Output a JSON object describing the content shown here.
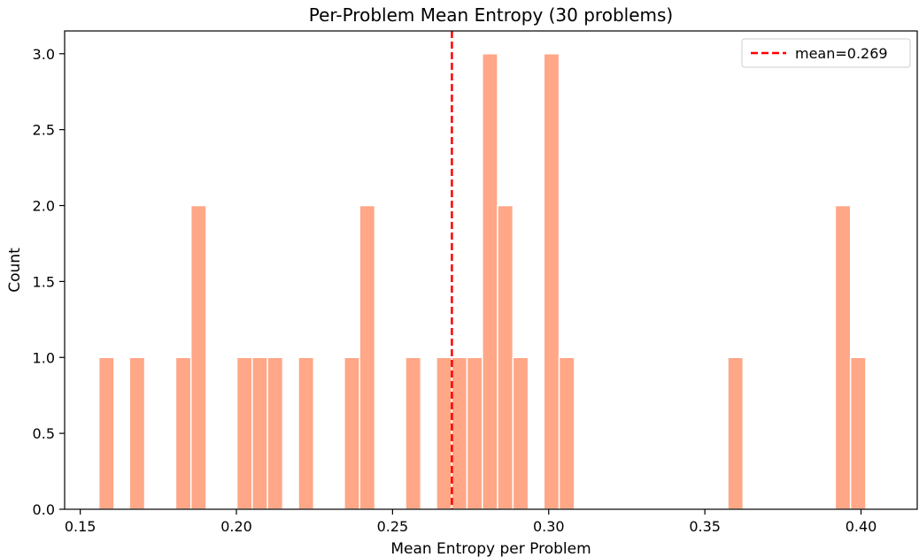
{
  "chart_data": {
    "type": "bar",
    "title": "Per-Problem Mean Entropy (30 problems)",
    "xlabel": "Mean Entropy per Problem",
    "ylabel": "Count",
    "xlim": [
      0.145,
      0.418
    ],
    "ylim": [
      0,
      3.15
    ],
    "xticks": [
      0.15,
      0.2,
      0.25,
      0.3,
      0.35,
      0.4
    ],
    "xtick_labels": [
      "0.15",
      "0.20",
      "0.25",
      "0.30",
      "0.35",
      "0.40"
    ],
    "yticks": [
      0,
      0.5,
      1,
      1.5,
      2,
      2.5,
      3
    ],
    "ytick_labels": [
      "0.0",
      "0.5",
      "1.0",
      "1.5",
      "2.0",
      "2.5",
      "3.0"
    ],
    "bin_width": 0.00491,
    "bar_color": "#FFA787",
    "bins": [
      {
        "x": 0.1584,
        "count": 1
      },
      {
        "x": 0.1682,
        "count": 1
      },
      {
        "x": 0.183,
        "count": 1
      },
      {
        "x": 0.1879,
        "count": 2
      },
      {
        "x": 0.2026,
        "count": 1
      },
      {
        "x": 0.2075,
        "count": 1
      },
      {
        "x": 0.2124,
        "count": 1
      },
      {
        "x": 0.2223,
        "count": 1
      },
      {
        "x": 0.237,
        "count": 1
      },
      {
        "x": 0.2419,
        "count": 2
      },
      {
        "x": 0.2566,
        "count": 1
      },
      {
        "x": 0.2665,
        "count": 1
      },
      {
        "x": 0.2714,
        "count": 1
      },
      {
        "x": 0.2763,
        "count": 1
      },
      {
        "x": 0.2812,
        "count": 3
      },
      {
        "x": 0.2861,
        "count": 2
      },
      {
        "x": 0.291,
        "count": 1
      },
      {
        "x": 0.3009,
        "count": 3
      },
      {
        "x": 0.3058,
        "count": 1
      },
      {
        "x": 0.3598,
        "count": 1
      },
      {
        "x": 0.3942,
        "count": 2
      },
      {
        "x": 0.3991,
        "count": 1
      }
    ],
    "mean_line": {
      "value": 0.269,
      "label": "mean=0.269",
      "color": "#FF0000",
      "style": "dashed"
    },
    "legend": {
      "position": "top-right"
    },
    "grid": false
  }
}
